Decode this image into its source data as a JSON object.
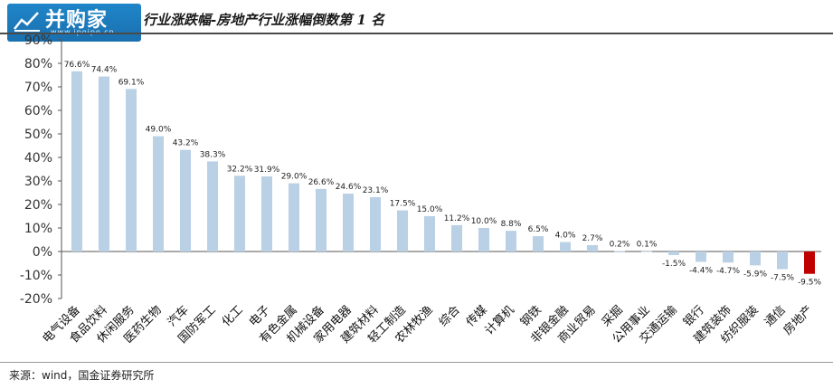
{
  "header": {
    "logo_name": "并购家",
    "logo_site": "www.ipoipo.cn",
    "title": "行业涨跌幅-房地产行业涨幅倒数第 1 名"
  },
  "footer": {
    "source": "来源：wind，国金证券研究所"
  },
  "colors": {
    "bar": "#b9d0e5",
    "highlight": "#c00000",
    "axis": "#555555",
    "logo_bg": "#1f86c9"
  },
  "chart_data": {
    "type": "bar",
    "title": "行业涨跌幅-房地产行业涨幅倒数第 1 名",
    "xlabel": "",
    "ylabel": "",
    "ylim": [
      -20,
      90
    ],
    "yticks": [
      "90%",
      "80%",
      "70%",
      "60%",
      "50%",
      "40%",
      "30%",
      "20%",
      "10%",
      "0%",
      "-10%",
      "-20%"
    ],
    "ytick_values": [
      90,
      80,
      70,
      60,
      50,
      40,
      30,
      20,
      10,
      0,
      -10,
      -20
    ],
    "grid": false,
    "categories": [
      "电气设备",
      "食品饮料",
      "休闲服务",
      "医药生物",
      "汽车",
      "国防军工",
      "化工",
      "电子",
      "有色金属",
      "机械设备",
      "家用电器",
      "建筑材料",
      "轻工制造",
      "农林牧渔",
      "综合",
      "传媒",
      "计算机",
      "钢铁",
      "非银金融",
      "商业贸易",
      "采掘",
      "公用事业",
      "交通运输",
      "银行",
      "建筑装饰",
      "纺织服装",
      "通信",
      "房地产"
    ],
    "values": [
      76.6,
      74.4,
      69.1,
      49.0,
      43.2,
      38.3,
      32.2,
      31.9,
      29.0,
      26.6,
      24.6,
      23.1,
      17.5,
      15.0,
      11.2,
      10.0,
      8.8,
      6.5,
      4.0,
      2.7,
      0.2,
      0.1,
      -1.5,
      -4.4,
      -4.7,
      -5.9,
      -7.5,
      -9.5
    ],
    "data_labels": [
      "76.6%",
      "74.4%",
      "69.1%",
      "49.0%",
      "43.2%",
      "38.3%",
      "32.2%",
      "31.9%",
      "29.0%",
      "26.6%",
      "24.6%",
      "23.1%",
      "17.5%",
      "15.0%",
      "11.2%",
      "10.0%",
      "8.8%",
      "6.5%",
      "4.0%",
      "2.7%",
      "0.2%",
      "0.1%",
      "-1.5%",
      "-4.4%",
      "-4.7%",
      "-5.9%",
      "-7.5%",
      "-9.5%"
    ],
    "highlight_index": 27
  }
}
